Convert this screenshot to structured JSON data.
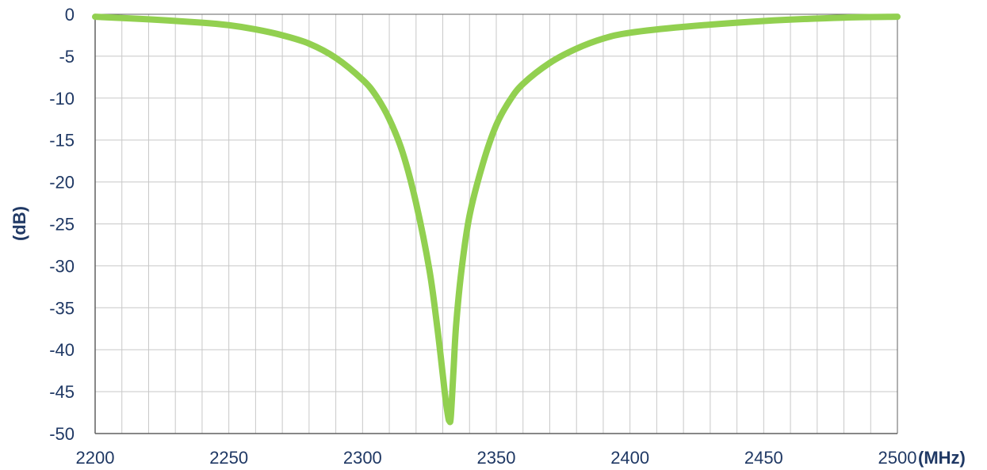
{
  "chart_data": {
    "type": "line",
    "title": "",
    "xlabel": "(MHz)",
    "ylabel": "(dB)",
    "xlim": [
      2200,
      2500
    ],
    "ylim": [
      -50,
      0
    ],
    "x_ticks": [
      2200,
      2250,
      2300,
      2350,
      2400,
      2450,
      2500
    ],
    "x_tick_labels": [
      "2200",
      "2250",
      "2300",
      "2350",
      "2400",
      "2450",
      "2500"
    ],
    "y_ticks": [
      0,
      -5,
      -10,
      -15,
      -20,
      -25,
      -30,
      -35,
      -40,
      -45,
      -50
    ],
    "y_tick_labels": [
      "0",
      "-5",
      "-10",
      "-15",
      "-20",
      "-25",
      "-30",
      "-35",
      "-40",
      "-45",
      "-50"
    ],
    "grid": true,
    "grid_minor_x_step": 10,
    "legend": "none",
    "colors": {
      "line": "#92d050",
      "axis_text": "#1f3864",
      "grid": "#c8c8c8",
      "axis": "#606060"
    },
    "series": [
      {
        "x": [
          2200,
          2220,
          2240,
          2250,
          2260,
          2270,
          2280,
          2290,
          2300,
          2305,
          2310,
          2315,
          2320,
          2325,
          2328,
          2330,
          2331,
          2332,
          2332.5,
          2333,
          2334,
          2335,
          2337,
          2340,
          2345,
          2350,
          2355,
          2360,
          2370,
          2380,
          2390,
          2400,
          2420,
          2450,
          2480,
          2500
        ],
        "y": [
          -0.3,
          -0.6,
          -1.0,
          -1.3,
          -1.8,
          -2.5,
          -3.5,
          -5.2,
          -7.8,
          -9.7,
          -12.5,
          -16.5,
          -22.5,
          -30.5,
          -37.5,
          -43.0,
          -45.8,
          -48.0,
          -48.5,
          -48.0,
          -42.5,
          -37.0,
          -30.5,
          -24.0,
          -17.8,
          -13.2,
          -10.3,
          -8.3,
          -5.8,
          -4.1,
          -2.9,
          -2.2,
          -1.5,
          -0.8,
          -0.4,
          -0.3
        ]
      }
    ]
  }
}
